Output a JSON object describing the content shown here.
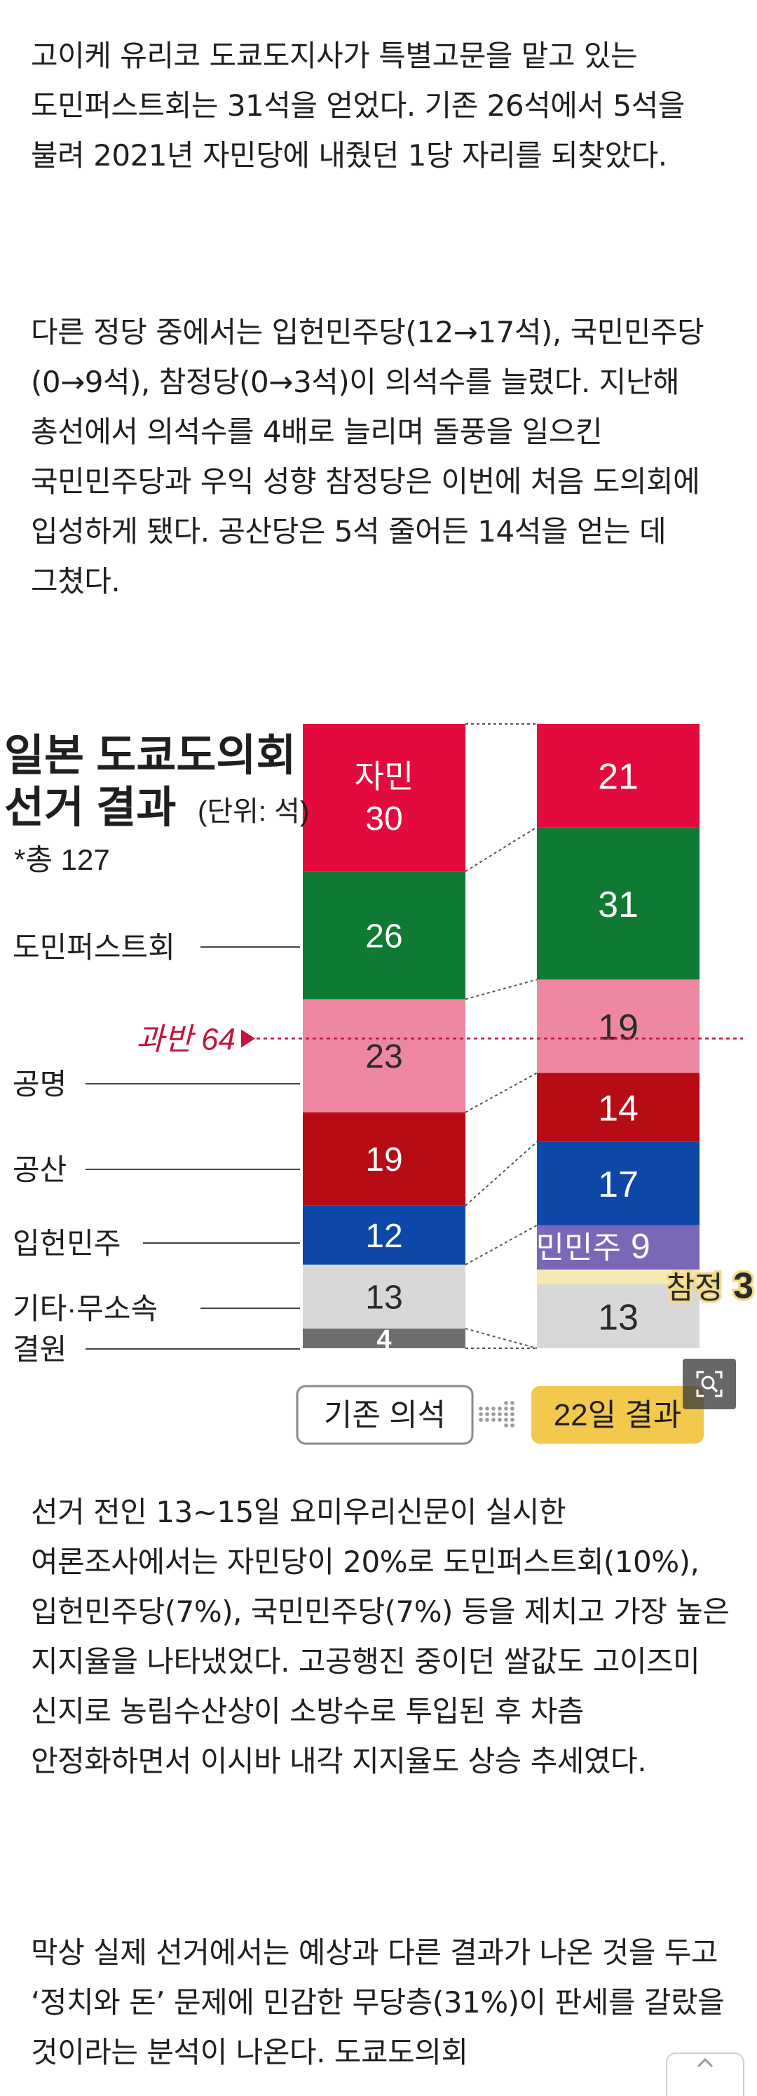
{
  "article": {
    "paragraphs": [
      "고이케 유리코 도쿄도지사가 특별고문을 맡고 있는 도민퍼스트회는 31석을 얻었다. 기존 26석에서 5석을 불려 2021년 자민당에 내줬던 1당 자리를 되찾았다.",
      "다른 정당 중에서는 입헌민주당(12→17석), 국민민주당(0→9석), 참정당(0→3석)이 의석수를 늘렸다. 지난해 총선에서 의석수를 4배로 늘리며 돌풍을 일으킨 국민민주당과 우익 성향 참정당은 이번에 처음 도의회에 입성하게 됐다. 공산당은 5석 줄어든 14석을 얻는 데 그쳤다.",
      "선거 전인 13~15일 요미우리신문이 실시한 여론조사에서는 자민당이 20%로 도민퍼스트회(10%), 입헌민주당(7%), 국민민주당(7%) 등을 제치고 가장 높은 지지율을 나타냈었다. 고공행진 중이던 쌀값도 고이즈미 신지로 농림수산상이 소방수로 투입된 후 차츰 안정화하면서 이시바 내각 지지율도 상승 추세였다.",
      "막상 실제 선거에서는 예상과 다른 결과가 나온 것을 두고 ‘정치와 돈’ 문제에 민감한 무당층(31%)이 판세를 갈랐을 것이라는 분석이 나온다. 도쿄도의회"
    ]
  },
  "chart_data": {
    "type": "bar",
    "stacked": true,
    "title_line1": "일본 도쿄도의회",
    "title_line2": "선거 결과",
    "unit": "(단위: 석)",
    "total_note": "*총 127",
    "total": 127,
    "majority_label": "과반 64",
    "majority_value": 64,
    "categories": [
      "기존 의석",
      "22일 결과"
    ],
    "before": [
      {
        "name": "자민",
        "value": 30,
        "color": "#e30a3e",
        "text_color": "#ffffff",
        "leader": false
      },
      {
        "name": "도민퍼스트회",
        "value": 26,
        "color": "#0e7a32",
        "text_color": "#ffffff",
        "leader": true
      },
      {
        "name": "공명",
        "value": 23,
        "color": "#ee88a2",
        "text_color": "#2a2a2a",
        "leader": true
      },
      {
        "name": "공산",
        "value": 19,
        "color": "#b80c14",
        "text_color": "#ffffff",
        "leader": true
      },
      {
        "name": "입헌민주",
        "value": 12,
        "color": "#0d47a8",
        "text_color": "#ffffff",
        "leader": true
      },
      {
        "name": "기타·무소속",
        "value": 13,
        "color": "#d8d8d8",
        "text_color": "#2a2a2a",
        "leader": true
      },
      {
        "name": "결원",
        "value": 4,
        "color": "#6e6e6e",
        "text_color": "#ffffff",
        "leader": true
      }
    ],
    "after": [
      {
        "name": "자민",
        "value": 21,
        "color": "#e30a3e",
        "text_color": "#ffffff"
      },
      {
        "name": "도민퍼스트회",
        "value": 31,
        "color": "#0e7a32",
        "text_color": "#ffffff"
      },
      {
        "name": "공명",
        "value": 19,
        "color": "#ee88a2",
        "text_color": "#2a2a2a"
      },
      {
        "name": "공산",
        "value": 14,
        "color": "#b80c14",
        "text_color": "#ffffff"
      },
      {
        "name": "입헌민주",
        "value": 17,
        "color": "#0d47a8",
        "text_color": "#ffffff"
      },
      {
        "name": "국민민주",
        "value": 9,
        "color": "#7b67b8",
        "text_color": "#ffffff"
      },
      {
        "name": "참정",
        "value": 3,
        "color": "#f6e9b4",
        "text_color": "#2a2a2a"
      },
      {
        "name": "기타·무소속",
        "value": 13,
        "color": "#d8d8d8",
        "text_color": "#2a2a2a"
      }
    ],
    "legend": {
      "before": "기존 의석",
      "after": "22일 결과"
    },
    "colors": {
      "accent": "#c4143a",
      "after_pill": "#f2c94c"
    }
  },
  "icons": {
    "zoom": "magnify-icon",
    "scroll_top": "arrow-up-icon"
  }
}
